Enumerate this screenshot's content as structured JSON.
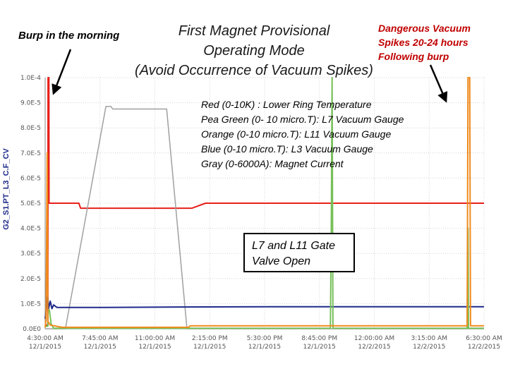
{
  "annotations": {
    "title_lines": [
      "First Magnet Provisional",
      "Operating Mode",
      "(Avoid Occurrence of Vacuum Spikes)"
    ],
    "burp": "Burp in the morning",
    "danger_lines": [
      "Dangerous Vacuum",
      "Spikes 20-24 hours",
      "Following burp"
    ],
    "legend_lines": [
      "Red (0-10K) :   Lower Ring Temperature",
      "Pea Green (0- 10 micro.T):  L7 Vacuum Gauge",
      "Orange (0-10 micro.T):  L11 Vacuum Gauge",
      "Blue (0-10 micro.T):  L3 Vacuum Gauge",
      "Gray (0-6000A):  Magnet Current"
    ],
    "gate_lines": [
      "L7 and L11 Gate",
      "Valve Open"
    ]
  },
  "chart_data": {
    "type": "line",
    "ylabel": "G2_S1.PT_L3_C.F_CV",
    "ylim": [
      0,
      0.0001
    ],
    "y_ticks": [
      "1.0E-4",
      "9.0E-5",
      "8.0E-5",
      "7.0E-5",
      "6.0E-5",
      "5.0E-5",
      "4.0E-5",
      "3.0E-5",
      "2.0E-5",
      "1.0E-5",
      "0.0E0"
    ],
    "x_ticks": [
      [
        "4:30:00 AM",
        "12/1/2015"
      ],
      [
        "7:45:00 AM",
        "12/1/2015"
      ],
      [
        "11:00:00 AM",
        "12/1/2015"
      ],
      [
        "2:15:00 PM",
        "12/1/2015"
      ],
      [
        "5:30:00 PM",
        "12/1/2015"
      ],
      [
        "8:45:00 PM",
        "12/1/2015"
      ],
      [
        "12:00:00 AM",
        "12/2/2015"
      ],
      [
        "3:15:00 AM",
        "12/2/2015"
      ],
      [
        "6:30:00 AM",
        "12/2/2015"
      ]
    ],
    "xlim": [
      4.5,
      30.5
    ],
    "x_unit": "hours after 12/1/2015 midnight",
    "grid": true,
    "series": [
      {
        "name": "Red (0-10K) : Lower Ring Temperature",
        "color": "#e8201a",
        "width": 2,
        "points": [
          [
            4.5,
            1.5e-06
          ],
          [
            4.66,
            1.5e-06
          ],
          [
            4.67,
            0.0001
          ],
          [
            4.72,
            0.0001
          ],
          [
            4.73,
            5e-05
          ],
          [
            6.5,
            5e-05
          ],
          [
            6.6,
            4.8e-05
          ],
          [
            9.0,
            4.8e-05
          ],
          [
            12.0,
            4.8e-05
          ],
          [
            13.2,
            4.8e-05
          ],
          [
            14.0,
            5e-05
          ],
          [
            30.5,
            5e-05
          ]
        ]
      },
      {
        "name": "Gray (0-6000A): Magnet Current",
        "color": "#a0a0a0",
        "width": 1.5,
        "points": [
          [
            4.5,
            0
          ],
          [
            5.7,
            0
          ],
          [
            8.1,
            8.85e-05
          ],
          [
            8.4,
            8.85e-05
          ],
          [
            8.5,
            8.75e-05
          ],
          [
            11.7,
            8.75e-05
          ],
          [
            12.9,
            0
          ],
          [
            30.5,
            0
          ]
        ]
      },
      {
        "name": "Blue (0-10 micro.T): L3 Vacuum Gauge",
        "color": "#1f2a8a",
        "width": 2,
        "points": [
          [
            4.5,
            4e-06
          ],
          [
            4.65,
            1.3e-05
          ],
          [
            4.7,
            8e-06
          ],
          [
            4.8,
            1.1e-05
          ],
          [
            4.9,
            8e-06
          ],
          [
            5.0,
            9.5e-06
          ],
          [
            5.2,
            8.5e-06
          ],
          [
            8.0,
            8.5e-06
          ],
          [
            14.0,
            8.7e-06
          ],
          [
            20.0,
            8.8e-06
          ],
          [
            26.0,
            8.8e-06
          ],
          [
            30.5,
            8.8e-06
          ]
        ]
      },
      {
        "name": "Pea Green (0- 10 micro.T): L7 Vacuum Gauge",
        "color": "#77c05a",
        "width": 2,
        "points": [
          [
            4.5,
            1e-06
          ],
          [
            4.66,
            1e-06
          ],
          [
            4.67,
            6.5e-06
          ],
          [
            4.75,
            7.5e-06
          ],
          [
            4.85,
            2e-06
          ],
          [
            5.0,
            2e-07
          ],
          [
            21.4,
            2e-07
          ],
          [
            21.45,
            4e-05
          ],
          [
            21.5,
            0.0001
          ],
          [
            21.55,
            2e-07
          ],
          [
            29.5,
            2e-07
          ],
          [
            29.55,
            4e-05
          ],
          [
            29.58,
            2e-07
          ],
          [
            30.5,
            2e-07
          ]
        ]
      },
      {
        "name": "Orange (0-10 micro.T): L11 Vacuum Gauge",
        "color": "#f08a1c",
        "width": 2,
        "points": [
          [
            4.5,
            5e-07
          ],
          [
            4.55,
            4e-06
          ],
          [
            4.62,
            7e-05
          ],
          [
            4.66,
            3e-06
          ],
          [
            4.8,
            1.5e-06
          ],
          [
            5.5,
            6e-07
          ],
          [
            13.0,
            6e-07
          ],
          [
            13.1,
            1.2e-06
          ],
          [
            29.5,
            1.2e-06
          ],
          [
            29.55,
            0.0001
          ],
          [
            29.65,
            0.0001
          ],
          [
            29.7,
            1.2e-06
          ],
          [
            30.5,
            1.2e-06
          ]
        ]
      }
    ]
  }
}
